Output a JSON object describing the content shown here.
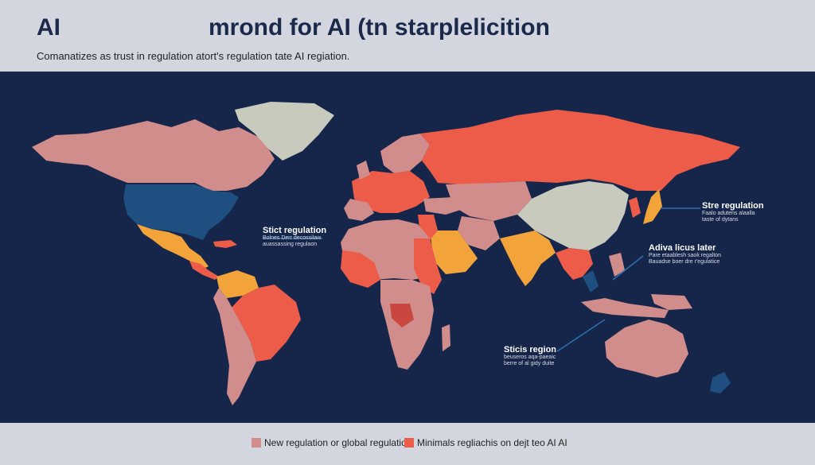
{
  "header": {
    "title_left": "AI",
    "title_main": "mrond for AI (tn starplelicition",
    "subtitle": "Comanatizes as trust in regulation atort's regulation tate AI regiation."
  },
  "colors": {
    "ocean": "#15264a",
    "header_bg": "#d3d6de",
    "new_regulation": "#d08d8b",
    "minimal_regulation": "#ec5c49",
    "strict_regulation": "#f2a43a",
    "blue_region": "#1f4e80",
    "grey_region": "#c9cabe",
    "dark_red": "#c9473f",
    "leader_line": "#2e6fb0"
  },
  "callouts": [
    {
      "id": "americas",
      "heading": "Stict regulation",
      "lines": [
        "Bolnes Derr decossilaw",
        "auassassing regulaon"
      ]
    },
    {
      "id": "east-asia",
      "heading": "Stre regulation",
      "lines": [
        "Faalo adutens alaalla",
        "taste of dytans"
      ]
    },
    {
      "id": "se-asia",
      "heading": "Adiva licus later",
      "lines": [
        "Pare etaablesh saok regalton",
        "Bauadse boer dre r'egulatice"
      ]
    },
    {
      "id": "indian-ocean",
      "heading": "Sticis region",
      "lines": [
        "beuseros aqa-paeaic",
        "berre of al gidy duite"
      ]
    }
  ],
  "legend": [
    {
      "label": "New regulation or global regulation",
      "color_key": "new_regulation"
    },
    {
      "label": "Minimals regliachis on dejt teo AI AI",
      "color_key": "minimal_regulation"
    }
  ]
}
